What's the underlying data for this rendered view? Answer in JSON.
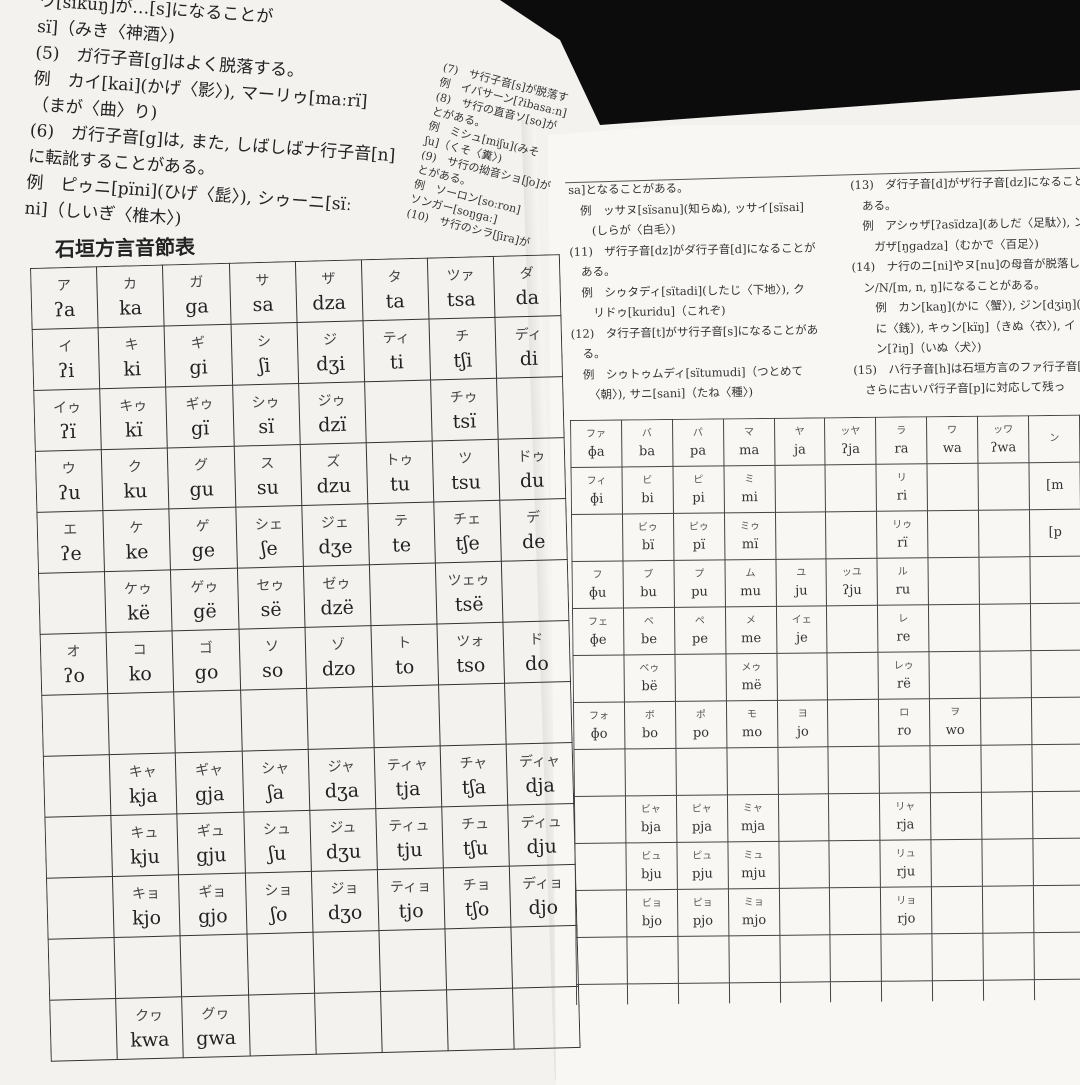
{
  "left_page": {
    "text_lines": [
      "ウ[sïkuŋ]が…[s]になることが",
      "sï]（みき〈神酒〉)",
      "(5)　ガ行子音[g]はよく脱落する。",
      "例　カイ[kai](かげ〈影〉), マーリゥ[maːrï]",
      "（まが〈曲〉り)",
      "(6)　ガ行子音[g]は, また, しばしばナ行子音[n]",
      "に転訛することがある。",
      "例　ピゥニ[pïni](ひげ〈髭〉), シゥーニ[sïː",
      "ni]（しいぎ〈椎木〉)"
    ],
    "side_lines": [
      "(7)　サ行子音[s]が脱落す",
      "例　イバサーン[ʔibasaːn]",
      "(8)　サ行の直音ソ[so]が",
      "とがある。",
      "例　ミシュ[miʃu](みそ",
      "ʃu]（くそ〈糞〉)",
      "(9)　サ行の拗音ショ[ʃo]が",
      "とがある。",
      "例　ソーロン[soːron]",
      "ソンガー[soŋgaː]",
      "(10)　サ行のシラ[ʃira]が"
    ],
    "table_title": "石垣方言音節表",
    "table": [
      [
        [
          "ア",
          "ʔa"
        ],
        [
          "カ",
          "ka"
        ],
        [
          "ガ",
          "ga"
        ],
        [
          "サ",
          "sa"
        ],
        [
          "ザ",
          "dza"
        ],
        [
          "タ",
          "ta"
        ],
        [
          "ツァ",
          "tsa"
        ],
        [
          "ダ",
          "da"
        ]
      ],
      [
        [
          "イ",
          "ʔi"
        ],
        [
          "キ",
          "ki"
        ],
        [
          "ギ",
          "gi"
        ],
        [
          "シ",
          "ʃi"
        ],
        [
          "ジ",
          "dʒi"
        ],
        [
          "ティ",
          "ti"
        ],
        [
          "チ",
          "tʃi"
        ],
        [
          "ディ",
          "di"
        ]
      ],
      [
        [
          "イゥ",
          "ʔï"
        ],
        [
          "キゥ",
          "kï"
        ],
        [
          "ギゥ",
          "gï"
        ],
        [
          "シゥ",
          "sï"
        ],
        [
          "ジゥ",
          "dzï"
        ],
        null,
        [
          "チゥ",
          "tsï"
        ],
        null
      ],
      [
        [
          "ウ",
          "ʔu"
        ],
        [
          "ク",
          "ku"
        ],
        [
          "グ",
          "gu"
        ],
        [
          "ス",
          "su"
        ],
        [
          "ズ",
          "dzu"
        ],
        [
          "トゥ",
          "tu"
        ],
        [
          "ツ",
          "tsu"
        ],
        [
          "ドゥ",
          "du"
        ]
      ],
      [
        [
          "エ",
          "ʔe"
        ],
        [
          "ケ",
          "ke"
        ],
        [
          "ゲ",
          "ge"
        ],
        [
          "シェ",
          "ʃe"
        ],
        [
          "ジェ",
          "dʒe"
        ],
        [
          "テ",
          "te"
        ],
        [
          "チェ",
          "tʃe"
        ],
        [
          "デ",
          "de"
        ]
      ],
      [
        null,
        [
          "ケゥ",
          "kë"
        ],
        [
          "ゲゥ",
          "gë"
        ],
        [
          "セゥ",
          "së"
        ],
        [
          "ゼゥ",
          "dzë"
        ],
        null,
        [
          "ツェゥ",
          "tsë"
        ],
        null
      ],
      [
        [
          "オ",
          "ʔo"
        ],
        [
          "コ",
          "ko"
        ],
        [
          "ゴ",
          "go"
        ],
        [
          "ソ",
          "so"
        ],
        [
          "ゾ",
          "dzo"
        ],
        [
          "ト",
          "to"
        ],
        [
          "ツォ",
          "tso"
        ],
        [
          "ド",
          "do"
        ]
      ],
      [
        null,
        null,
        null,
        null,
        null,
        null,
        null,
        null
      ],
      [
        null,
        [
          "キャ",
          "kja"
        ],
        [
          "ギャ",
          "gja"
        ],
        [
          "シャ",
          "ʃa"
        ],
        [
          "ジャ",
          "dʒa"
        ],
        [
          "ティャ",
          "tja"
        ],
        [
          "チャ",
          "tʃa"
        ],
        [
          "ディャ",
          "dja"
        ]
      ],
      [
        null,
        [
          "キュ",
          "kju"
        ],
        [
          "ギュ",
          "gju"
        ],
        [
          "シュ",
          "ʃu"
        ],
        [
          "ジュ",
          "dʒu"
        ],
        [
          "ティュ",
          "tju"
        ],
        [
          "チュ",
          "tʃu"
        ],
        [
          "ディュ",
          "dju"
        ]
      ],
      [
        null,
        [
          "キョ",
          "kjo"
        ],
        [
          "ギョ",
          "gjo"
        ],
        [
          "ショ",
          "ʃo"
        ],
        [
          "ジョ",
          "dʒo"
        ],
        [
          "ティョ",
          "tjo"
        ],
        [
          "チョ",
          "tʃo"
        ],
        [
          "ディョ",
          "djo"
        ]
      ],
      [
        null,
        null,
        null,
        null,
        null,
        null,
        null,
        null
      ],
      [
        null,
        [
          "クヮ",
          "kwa"
        ],
        [
          "グヮ",
          "gwa"
        ],
        null,
        null,
        null,
        null,
        null
      ]
    ]
  },
  "right_page": {
    "col1": [
      "sa]となることがある。",
      "　例　ッサヌ[sïsanu](知らぬ), ッサイ[sïsai]",
      "　　(しらが〈白毛〉)",
      "(11)　ザ行子音[dz]がダ行子音[d]になることが",
      "　ある。",
      "　例　シゥタディ[sïtadi](したじ〈下地〉), ク",
      "　　リドゥ[kuridu]（これぞ)",
      "(12)　タ行子音[t]がサ行子音[s]になることがあ",
      "　る。",
      "　例　シゥトゥムディ[sïtumudi]（つとめて",
      "　　〈朝〉), サニ[sani]（たね〈種〉)"
    ],
    "col2": [
      "(13)　ダ行子音[d]がザ行子音[dz]になることが",
      "　ある。",
      "　例　アシゥザ[ʔasïdza](あしだ〈足駄〉), ン",
      "　　ガザ[ŋgadza]（むかで〈百足〉)",
      "(14)　ナ行のニ[ni]やヌ[nu]の母音が脱落して",
      "　ン/N/[m, n, ŋ]になることがある。",
      "　　例　カン[kaŋ](かに〈蟹〉), ジン[dʒiŋ](ぜ",
      "　　に〈銭〉), キゥン[kïŋ]（きぬ〈衣〉), イ",
      "　　ン[ʔiŋ]（いぬ〈犬〉)",
      "(15)　ハ行子音[h]は石垣方言のファ行子音[ɸ]",
      "　さらに古いパ行子音[p]に対応して残っ"
    ],
    "table": [
      [
        [
          "ファ",
          "ɸa"
        ],
        [
          "バ",
          "ba"
        ],
        [
          "パ",
          "pa"
        ],
        [
          "マ",
          "ma"
        ],
        [
          "ヤ",
          "ja"
        ],
        [
          "ッヤ",
          "ʔja"
        ],
        [
          "ラ",
          "ra"
        ],
        [
          "ワ",
          "wa"
        ],
        [
          "ッワ",
          "ʔwa"
        ],
        [
          "ン",
          ""
        ]
      ],
      [
        [
          "フィ",
          "ɸi"
        ],
        [
          "ビ",
          "bi"
        ],
        [
          "ピ",
          "pi"
        ],
        [
          "ミ",
          "mi"
        ],
        null,
        null,
        [
          "リ",
          "ri"
        ],
        null,
        null,
        [
          "",
          "[m"
        ]
      ],
      [
        null,
        [
          "ビゥ",
          "bï"
        ],
        [
          "ピゥ",
          "pï"
        ],
        [
          "ミゥ",
          "mï"
        ],
        null,
        null,
        [
          "リゥ",
          "rï"
        ],
        null,
        null,
        [
          "",
          "[p"
        ]
      ],
      [
        [
          "フ",
          "ɸu"
        ],
        [
          "ブ",
          "bu"
        ],
        [
          "プ",
          "pu"
        ],
        [
          "ム",
          "mu"
        ],
        [
          "ユ",
          "ju"
        ],
        [
          "ッユ",
          "ʔju"
        ],
        [
          "ル",
          "ru"
        ],
        null,
        null,
        null
      ],
      [
        [
          "フェ",
          "ɸe"
        ],
        [
          "ベ",
          "be"
        ],
        [
          "ペ",
          "pe"
        ],
        [
          "メ",
          "me"
        ],
        [
          "イェ",
          "je"
        ],
        null,
        [
          "レ",
          "re"
        ],
        null,
        null,
        null
      ],
      [
        null,
        [
          "ベゥ",
          "bë"
        ],
        null,
        [
          "メゥ",
          "më"
        ],
        null,
        null,
        [
          "レゥ",
          "rë"
        ],
        null,
        null,
        null
      ],
      [
        [
          "フォ",
          "ɸo"
        ],
        [
          "ボ",
          "bo"
        ],
        [
          "ポ",
          "po"
        ],
        [
          "モ",
          "mo"
        ],
        [
          "ヨ",
          "jo"
        ],
        null,
        [
          "ロ",
          "ro"
        ],
        [
          "ヲ",
          "wo"
        ],
        null,
        null
      ],
      [
        null,
        null,
        null,
        null,
        null,
        null,
        null,
        null,
        null,
        null
      ],
      [
        null,
        [
          "ビャ",
          "bja"
        ],
        [
          "ピャ",
          "pja"
        ],
        [
          "ミャ",
          "mja"
        ],
        null,
        null,
        [
          "リャ",
          "rja"
        ],
        null,
        null,
        null
      ],
      [
        null,
        [
          "ビュ",
          "bju"
        ],
        [
          "ピュ",
          "pju"
        ],
        [
          "ミュ",
          "mju"
        ],
        null,
        null,
        [
          "リュ",
          "rju"
        ],
        null,
        null,
        null
      ],
      [
        null,
        [
          "ビョ",
          "bjo"
        ],
        [
          "ピョ",
          "pjo"
        ],
        [
          "ミョ",
          "mjo"
        ],
        null,
        null,
        [
          "リョ",
          "rjo"
        ],
        null,
        null,
        null
      ],
      [
        null,
        null,
        null,
        null,
        null,
        null,
        null,
        null,
        null,
        null
      ],
      [
        null,
        null,
        null,
        null,
        null,
        null,
        null,
        null,
        null,
        null
      ]
    ]
  }
}
